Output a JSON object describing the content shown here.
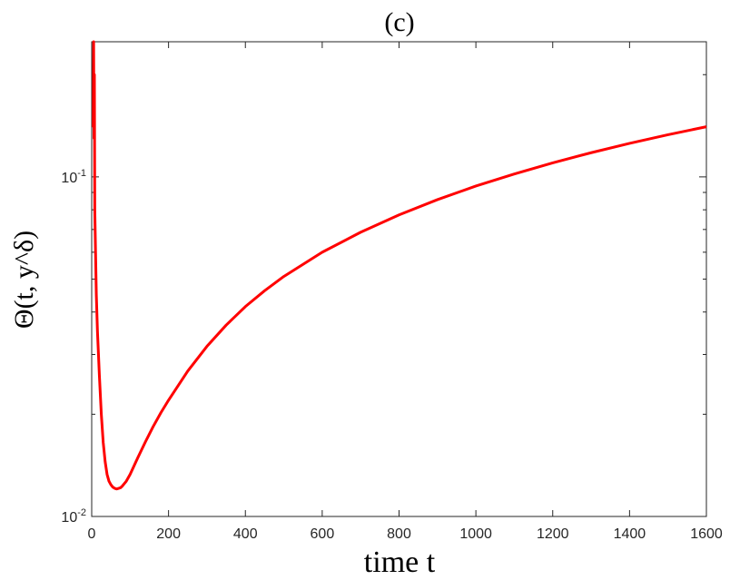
{
  "chart_data": {
    "type": "line",
    "title": "(c)",
    "xlabel": "time t",
    "ylabel": "Θ(t, y^δ)",
    "x_ticks": [
      "0",
      "200",
      "400",
      "600",
      "800",
      "1000",
      "1200",
      "1400",
      "1600"
    ],
    "y_ticks": [
      "10^-2",
      "10^-1"
    ],
    "xlim": [
      0,
      1600
    ],
    "ylim": [
      0.01,
      0.25
    ],
    "yscale": "log",
    "grid": false,
    "series": [
      {
        "color": "#ff0000",
        "x": [
          4,
          5,
          6,
          7,
          8,
          10,
          12,
          15,
          20,
          25,
          30,
          35,
          40,
          45,
          50,
          55,
          60,
          65,
          70,
          75,
          80,
          90,
          100,
          120,
          140,
          160,
          180,
          200,
          250,
          300,
          350,
          400,
          450,
          500,
          600,
          700,
          800,
          900,
          1000,
          1100,
          1200,
          1300,
          1400,
          1500,
          1600
        ],
        "y": [
          0.14,
          0.25,
          0.13,
          0.2,
          0.08,
          0.06,
          0.045,
          0.035,
          0.026,
          0.02,
          0.0165,
          0.0145,
          0.0133,
          0.0127,
          0.0124,
          0.0122,
          0.0121,
          0.01205,
          0.0121,
          0.01215,
          0.0123,
          0.0127,
          0.0133,
          0.0149,
          0.0166,
          0.0184,
          0.0202,
          0.022,
          0.0268,
          0.0317,
          0.0366,
          0.0415,
          0.0462,
          0.0509,
          0.06,
          0.0687,
          0.0773,
          0.0857,
          0.094,
          0.102,
          0.11,
          0.1178,
          0.1255,
          0.1331,
          0.1405
        ]
      }
    ]
  }
}
